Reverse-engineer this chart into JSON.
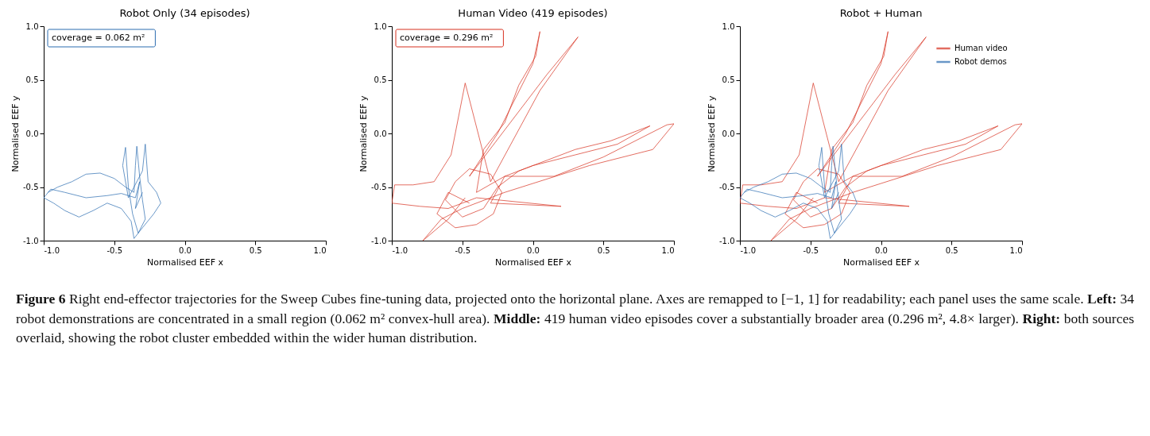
{
  "chart_data": [
    {
      "type": "line",
      "title": "Robot Only (34 episodes)",
      "xlabel": "Normalised EEF x",
      "ylabel": "Normalised EEF y",
      "annotations": [
        "coverage = 0.062 m²"
      ],
      "xlim": [
        -1,
        1
      ],
      "ylim": [
        -1,
        1
      ],
      "xticks": [
        {
          "value": -1,
          "label": "-1.0"
        },
        {
          "value": -0.5,
          "label": "-0.5"
        },
        {
          "value": 0,
          "label": "0.0"
        },
        {
          "value": 0.5,
          "label": "0.5"
        },
        {
          "value": 1,
          "label": "1.0"
        }
      ],
      "yticks": [
        {
          "value": -1,
          "label": "-1.0"
        },
        {
          "value": -0.5,
          "label": "-0.5"
        },
        {
          "value": 0,
          "label": "0.0"
        },
        {
          "value": 0.5,
          "label": "0.5"
        },
        {
          "value": 1,
          "label": "1.0"
        }
      ],
      "series": [
        {
          "color": "#2b6cb0",
          "x": [
            -0.97,
            -0.9,
            -0.8,
            -0.7,
            -0.6,
            -0.5,
            -0.42,
            -0.36,
            -0.35,
            -0.34,
            -0.32,
            -0.3,
            -0.28,
            -0.33,
            -0.37,
            -0.4,
            -0.42,
            -0.44,
            -0.4,
            -0.3,
            -0.28,
            -0.26,
            -0.2,
            -0.17,
            -0.22,
            -0.3,
            -0.36,
            -0.38,
            -0.45,
            -0.55,
            -0.65,
            -0.75,
            -0.85,
            -0.93,
            -1.0,
            -0.95,
            -0.85,
            -0.7,
            -0.55,
            -0.45,
            -0.35,
            -0.32,
            -0.35,
            -0.3
          ],
          "values": [
            -0.55,
            -0.5,
            -0.45,
            -0.38,
            -0.37,
            -0.42,
            -0.5,
            -0.55,
            -0.3,
            -0.12,
            -0.4,
            -0.62,
            -0.8,
            -0.93,
            -0.75,
            -0.5,
            -0.13,
            -0.3,
            -0.6,
            -0.35,
            -0.1,
            -0.45,
            -0.55,
            -0.65,
            -0.75,
            -0.88,
            -0.98,
            -0.82,
            -0.7,
            -0.65,
            -0.72,
            -0.78,
            -0.72,
            -0.65,
            -0.6,
            -0.52,
            -0.55,
            -0.6,
            -0.58,
            -0.56,
            -0.6,
            -0.45,
            -0.7,
            -0.55
          ]
        }
      ]
    },
    {
      "type": "line",
      "title": "Human Video (419 episodes)",
      "xlabel": "Normalised EEF x",
      "ylabel": "Normalised EEF y",
      "annotations": [
        "coverage = 0.296 m²"
      ],
      "xlim": [
        -1,
        1
      ],
      "ylim": [
        -1,
        1
      ],
      "xticks": [
        {
          "value": -1,
          "label": "-1.0"
        },
        {
          "value": -0.5,
          "label": "-0.5"
        },
        {
          "value": 0,
          "label": "0.0"
        },
        {
          "value": 0.5,
          "label": "0.5"
        },
        {
          "value": 1,
          "label": "1.0"
        }
      ],
      "yticks": [
        {
          "value": -1,
          "label": "-1.0"
        },
        {
          "value": -0.5,
          "label": "-0.5"
        },
        {
          "value": 0,
          "label": "0.0"
        },
        {
          "value": 0.5,
          "label": "0.5"
        },
        {
          "value": 1,
          "label": "1.0"
        }
      ],
      "series": [
        {
          "color": "#d7301f",
          "x": [
            -0.45,
            -0.6,
            -0.68,
            -0.55,
            -0.4,
            -0.28,
            -0.22,
            -0.3,
            -0.45,
            -0.55,
            -0.62,
            -0.5,
            -0.35,
            -0.25,
            -0.1,
            0.1,
            0.3,
            0.55,
            0.83,
            0.6,
            0.3,
            0.0,
            -0.2,
            -0.4,
            -0.35,
            -0.2,
            -0.1,
            0.02,
            0.05,
            0.0,
            -0.25,
            -0.45,
            0.1,
            0.32,
            0.05,
            -0.3,
            -0.48,
            -0.58,
            -0.7,
            -0.85,
            -0.98,
            -1.0,
            -0.8,
            -0.6,
            -0.4,
            0.2,
            -0.3,
            -0.2,
            0.15,
            0.5,
            0.95,
            1.0,
            0.85,
            0.4,
            -0.2,
            -0.5,
            -0.65,
            -0.78,
            -0.6,
            -0.48
          ],
          "values": [
            -0.65,
            -0.55,
            -0.75,
            -0.88,
            -0.85,
            -0.75,
            -0.55,
            -0.38,
            -0.33,
            -0.45,
            -0.62,
            -0.78,
            -0.7,
            -0.5,
            -0.35,
            -0.25,
            -0.15,
            -0.07,
            0.07,
            -0.1,
            -0.2,
            -0.3,
            -0.4,
            -0.55,
            -0.15,
            0.1,
            0.45,
            0.72,
            0.95,
            0.65,
            0.0,
            -0.4,
            0.55,
            0.9,
            0.4,
            -0.45,
            0.47,
            -0.2,
            -0.45,
            -0.48,
            -0.48,
            -0.65,
            -0.68,
            -0.7,
            -0.6,
            -0.68,
            -0.65,
            -0.4,
            -0.4,
            -0.22,
            0.08,
            0.09,
            -0.15,
            -0.3,
            -0.55,
            -0.7,
            -0.8,
            -1.0,
            -0.8,
            -0.6
          ]
        }
      ]
    },
    {
      "type": "line",
      "title": "Robot + Human",
      "xlabel": "Normalised EEF x",
      "ylabel": "Normalised EEF y",
      "legend": "top right",
      "xlim": [
        -1,
        1
      ],
      "ylim": [
        -1,
        1
      ],
      "xticks": [
        {
          "value": -1,
          "label": "-1.0"
        },
        {
          "value": -0.5,
          "label": "-0.5"
        },
        {
          "value": 0,
          "label": "0.0"
        },
        {
          "value": 0.5,
          "label": "0.5"
        },
        {
          "value": 1,
          "label": "1.0"
        }
      ],
      "yticks": [
        {
          "value": -1,
          "label": "-1.0"
        },
        {
          "value": -0.5,
          "label": "-0.5"
        },
        {
          "value": 0,
          "label": "0.0"
        },
        {
          "value": 0.5,
          "label": "0.5"
        },
        {
          "value": 1,
          "label": "1.0"
        }
      ],
      "series": [
        {
          "name": "Human video",
          "color": "#d7301f",
          "x": [
            -0.45,
            -0.6,
            -0.68,
            -0.55,
            -0.4,
            -0.28,
            -0.22,
            -0.3,
            -0.45,
            -0.55,
            -0.62,
            -0.5,
            -0.35,
            -0.25,
            -0.1,
            0.1,
            0.3,
            0.55,
            0.83,
            0.6,
            0.3,
            0.0,
            -0.2,
            -0.4,
            -0.35,
            -0.2,
            -0.1,
            0.02,
            0.05,
            0.0,
            -0.25,
            -0.45,
            0.1,
            0.32,
            0.05,
            -0.3,
            -0.48,
            -0.58,
            -0.7,
            -0.85,
            -0.98,
            -1.0,
            -0.8,
            -0.6,
            -0.4,
            0.2,
            -0.3,
            -0.2,
            0.15,
            0.5,
            0.95,
            1.0,
            0.85,
            0.4,
            -0.2,
            -0.5,
            -0.65,
            -0.78,
            -0.6,
            -0.48
          ],
          "values": [
            -0.65,
            -0.55,
            -0.75,
            -0.88,
            -0.85,
            -0.75,
            -0.55,
            -0.38,
            -0.33,
            -0.45,
            -0.62,
            -0.78,
            -0.7,
            -0.5,
            -0.35,
            -0.25,
            -0.15,
            -0.07,
            0.07,
            -0.1,
            -0.2,
            -0.3,
            -0.4,
            -0.55,
            -0.15,
            0.1,
            0.45,
            0.72,
            0.95,
            0.65,
            0.0,
            -0.4,
            0.55,
            0.9,
            0.4,
            -0.45,
            0.47,
            -0.2,
            -0.45,
            -0.48,
            -0.48,
            -0.65,
            -0.68,
            -0.7,
            -0.6,
            -0.68,
            -0.65,
            -0.4,
            -0.4,
            -0.22,
            0.08,
            0.09,
            -0.15,
            -0.3,
            -0.55,
            -0.7,
            -0.8,
            -1.0,
            -0.8,
            -0.6
          ]
        },
        {
          "name": "Robot demos",
          "color": "#2b6cb0",
          "x": [
            -0.97,
            -0.9,
            -0.8,
            -0.7,
            -0.6,
            -0.5,
            -0.42,
            -0.36,
            -0.35,
            -0.34,
            -0.32,
            -0.3,
            -0.28,
            -0.33,
            -0.37,
            -0.4,
            -0.42,
            -0.44,
            -0.4,
            -0.3,
            -0.28,
            -0.26,
            -0.2,
            -0.17,
            -0.22,
            -0.3,
            -0.36,
            -0.38,
            -0.45,
            -0.55,
            -0.65,
            -0.75,
            -0.85,
            -0.93,
            -1.0,
            -0.95,
            -0.85,
            -0.7,
            -0.55,
            -0.45,
            -0.35,
            -0.32,
            -0.35,
            -0.3
          ],
          "values": [
            -0.55,
            -0.5,
            -0.45,
            -0.38,
            -0.37,
            -0.42,
            -0.5,
            -0.55,
            -0.3,
            -0.12,
            -0.4,
            -0.62,
            -0.8,
            -0.93,
            -0.75,
            -0.5,
            -0.13,
            -0.3,
            -0.6,
            -0.35,
            -0.1,
            -0.45,
            -0.55,
            -0.65,
            -0.75,
            -0.88,
            -0.98,
            -0.82,
            -0.7,
            -0.65,
            -0.72,
            -0.78,
            -0.72,
            -0.65,
            -0.6,
            -0.52,
            -0.55,
            -0.6,
            -0.58,
            -0.56,
            -0.6,
            -0.45,
            -0.7,
            -0.55
          ]
        }
      ]
    },
    {
      "type": "other",
      "annotations": [
        "Figure 6",
        "Right end-effector trajectories for the Sweep Cubes fine-tuning data, projected onto the horizontal plane. Axes are remapped to [−1, 1] for readability; each panel uses the same scale.",
        "Left:",
        "34 robot demonstrations are concentrated in a small region (0.062 m² convex-hull area).",
        "Middle:",
        "419 human video episodes cover a substantially broader area (0.296 m², 4.8× larger).",
        "Right:",
        "both sources overlaid, showing the robot cluster embedded within the wider human distribution."
      ]
    }
  ]
}
